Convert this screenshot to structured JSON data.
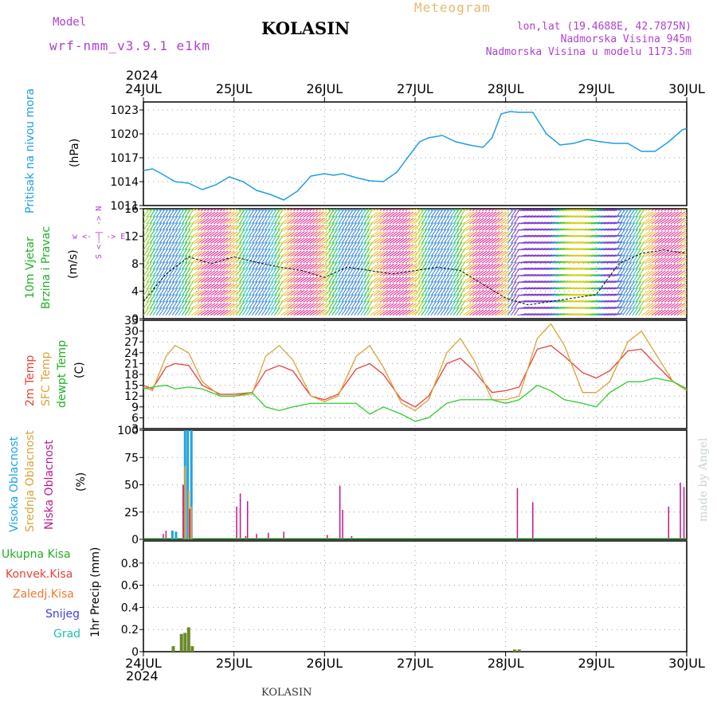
{
  "header": {
    "model_label": "Model",
    "model_value": "wrf-nmm_v3.9.1  e1km",
    "station": "KOLASIN",
    "meteogram": "Meteogram",
    "lonlat": "lon,lat (19.4688E, 42.7875N)",
    "elevation": "Nadmorska Visina 945m",
    "model_elevation": "Nadmorska Visina u modelu 1173.5m",
    "footer_station": "KOLASIN",
    "made_by": "made by Angel"
  },
  "colors": {
    "pressure": "#1f9ee3",
    "temp2m": "#e8413a",
    "sfc_temp": "#d9a33a",
    "dewpt": "#2ecc2e",
    "high_cloud": "#1ea3e6",
    "mid_cloud": "#d9a33a",
    "low_cloud": "#c0178a",
    "total_precip": "#2ecc2e",
    "conv_precip": "#e8413a",
    "frozen_precip": "#f0782a",
    "snow": "#4040e0",
    "hail": "#20c0b0",
    "magenta_text": "#b040d0",
    "grid": "#999999"
  },
  "time_axis": {
    "year": "2024",
    "days": [
      "24JUL",
      "25JUL",
      "26JUL",
      "27JUL",
      "28JUL",
      "29JUL",
      "30JUL"
    ]
  },
  "panel_labels": {
    "pressure": {
      "title": "Pritisak na nivou mora",
      "unit": "(hPa)"
    },
    "wind": {
      "title1": "10m Vjetar",
      "title2": "Brzina i Pravac",
      "unit": "(m/s)",
      "compass": "w <- | -> E",
      "compass_ns": "S <- | -> N"
    },
    "temp": {
      "l1": "2m Temp",
      "l2": "SFC Temp",
      "l3": "dewpt Temp",
      "unit": "(C)"
    },
    "cloud": {
      "l1": "Visoka Oblacnost",
      "l2": "Srednja Oblacnost",
      "l3": "Niska Oblacnost",
      "unit": "(%)"
    },
    "precip": {
      "l1": "Ukupna Kisa",
      "l2": "Konvek.Kisa",
      "l3": "Zaledj.Kisa",
      "l4": "Snijeg",
      "l5": "Grad",
      "unit": "1hr Precip (mm)"
    }
  },
  "chart_data": [
    {
      "type": "line",
      "name": "pressure",
      "ylabel": "(hPa)",
      "ylim": [
        1011,
        1024
      ],
      "yticks": [
        "1011",
        "1014",
        "1017",
        "1020",
        "1023"
      ],
      "x_days": [
        0,
        0.1,
        0.2,
        0.35,
        0.5,
        0.65,
        0.8,
        0.95,
        1.1,
        1.25,
        1.4,
        1.55,
        1.7,
        1.85,
        2.0,
        2.1,
        2.2,
        2.35,
        2.5,
        2.65,
        2.8,
        2.95,
        3.05,
        3.15,
        3.3,
        3.45,
        3.6,
        3.75,
        3.85,
        3.95,
        4.05,
        4.15,
        4.3,
        4.45,
        4.6,
        4.75,
        4.9,
        5.05,
        5.2,
        5.35,
        5.5,
        5.65,
        5.8,
        5.95,
        6.0
      ],
      "values": [
        1015.4,
        1015.6,
        1015.0,
        1014.0,
        1013.8,
        1013.0,
        1013.6,
        1014.6,
        1014.0,
        1012.9,
        1012.4,
        1011.7,
        1012.8,
        1014.7,
        1015.0,
        1014.8,
        1015.0,
        1014.5,
        1014.1,
        1014.0,
        1015.2,
        1017.5,
        1019.0,
        1019.5,
        1019.8,
        1019.0,
        1018.6,
        1018.3,
        1019.5,
        1022.5,
        1022.8,
        1022.7,
        1022.7,
        1020.0,
        1018.6,
        1018.8,
        1019.3,
        1019.0,
        1018.8,
        1018.8,
        1017.8,
        1017.8,
        1019.0,
        1020.5,
        1020.7
      ]
    },
    {
      "type": "line",
      "name": "wind",
      "ylabel": "(m/s)",
      "ylim": [
        0,
        16
      ],
      "yticks": [
        "0",
        "4",
        "8",
        "12",
        "16"
      ],
      "x_days": [
        0,
        0.25,
        0.5,
        0.75,
        1.0,
        1.25,
        1.5,
        1.75,
        2.0,
        2.25,
        2.5,
        2.75,
        3.0,
        3.25,
        3.5,
        3.75,
        4.0,
        4.25,
        4.5,
        4.75,
        5.0,
        5.25,
        5.5,
        5.75,
        6.0
      ],
      "values": [
        2.5,
        6.5,
        9.0,
        8.0,
        9.0,
        8.2,
        7.5,
        7.0,
        6.0,
        7.5,
        7.0,
        6.5,
        7.0,
        7.5,
        7.0,
        5.0,
        3.0,
        2.0,
        2.5,
        3.0,
        3.5,
        8.0,
        9.5,
        10.0,
        9.5
      ]
    },
    {
      "type": "line",
      "name": "temperature",
      "ylabel": "(C)",
      "ylim": [
        3,
        33
      ],
      "yticks": [
        "3",
        "6",
        "9",
        "12",
        "15",
        "18",
        "21",
        "24",
        "27",
        "30",
        "33"
      ],
      "x_days": [
        0,
        0.1,
        0.25,
        0.35,
        0.5,
        0.65,
        0.85,
        1.0,
        1.2,
        1.35,
        1.5,
        1.65,
        1.85,
        2.0,
        2.15,
        2.35,
        2.5,
        2.65,
        2.85,
        3.0,
        3.15,
        3.35,
        3.5,
        3.65,
        3.85,
        4.0,
        4.15,
        4.35,
        4.5,
        4.65,
        4.85,
        5.0,
        5.15,
        5.35,
        5.5,
        5.65,
        5.85,
        6.0
      ],
      "series": [
        {
          "name": "2m Temp",
          "values": [
            15,
            14,
            20,
            21,
            20.5,
            15,
            12.5,
            12.5,
            13,
            19,
            20.5,
            19,
            12,
            11,
            12.5,
            19.5,
            21,
            18,
            11,
            9,
            12,
            21,
            22.5,
            19,
            13,
            13.5,
            14.5,
            25,
            26,
            23,
            18.5,
            17,
            19,
            24.5,
            25,
            21,
            16,
            14
          ]
        },
        {
          "name": "SFC Temp",
          "values": [
            14.5,
            13.5,
            23,
            26,
            24,
            16,
            12,
            12,
            12.5,
            23,
            26,
            22,
            12,
            10.5,
            12,
            23,
            26,
            20,
            10,
            8,
            11,
            24,
            28,
            22,
            11,
            11,
            12,
            28,
            32,
            26,
            13,
            13,
            16,
            27,
            30,
            24,
            16,
            13.5
          ]
        },
        {
          "name": "dewpt Temp",
          "values": [
            14,
            14.5,
            15,
            14,
            14.5,
            14,
            12,
            12,
            13,
            9,
            8,
            9,
            10,
            10,
            10,
            10,
            7,
            9,
            7,
            5,
            6,
            10,
            11,
            11,
            11,
            10,
            11,
            15,
            13.5,
            11,
            10,
            9,
            13,
            16,
            16,
            17,
            16,
            14
          ]
        }
      ]
    },
    {
      "type": "bar",
      "name": "cloud",
      "ylabel": "(%)",
      "ylim": [
        0,
        100
      ],
      "yticks": [
        "0",
        "25",
        "50",
        "75",
        "100"
      ],
      "series": [
        {
          "name": "Visoka Oblacnost",
          "x_days": [
            0.32,
            0.36,
            0.46,
            0.49,
            0.53
          ],
          "values": [
            8,
            7,
            100,
            100,
            100
          ]
        },
        {
          "name": "Srednja Oblacnost",
          "x_days": [
            0.44,
            0.46,
            0.5,
            0.53
          ],
          "values": [
            50,
            67,
            45,
            30
          ]
        },
        {
          "name": "Niska Oblacnost",
          "x_days": [
            0.22,
            0.25,
            0.44,
            0.51,
            1.03,
            1.07,
            1.13,
            1.15,
            1.25,
            1.38,
            1.55,
            2.03,
            2.17,
            2.2,
            2.3,
            4.13,
            4.3,
            5.0,
            5.8,
            5.93,
            5.97
          ],
          "values": [
            5,
            8,
            50,
            28,
            30,
            42,
            3,
            35,
            5,
            6,
            7,
            4,
            49,
            27,
            3,
            47,
            34,
            2,
            30,
            52,
            48
          ]
        }
      ]
    },
    {
      "type": "bar",
      "name": "precipitation",
      "ylabel": "1hr Precip (mm)",
      "ylim": [
        0,
        1.0
      ],
      "yticks": [
        "0",
        "0.2",
        "0.4",
        "0.6",
        "0.8"
      ],
      "series": [
        {
          "name": "Ukupna Kisa",
          "x_days": [
            0.33,
            0.42,
            0.46,
            0.5,
            0.54,
            4.1,
            4.15
          ],
          "values": [
            0.05,
            0.16,
            0.17,
            0.22,
            0.05,
            0.02,
            0.02
          ]
        }
      ]
    }
  ]
}
